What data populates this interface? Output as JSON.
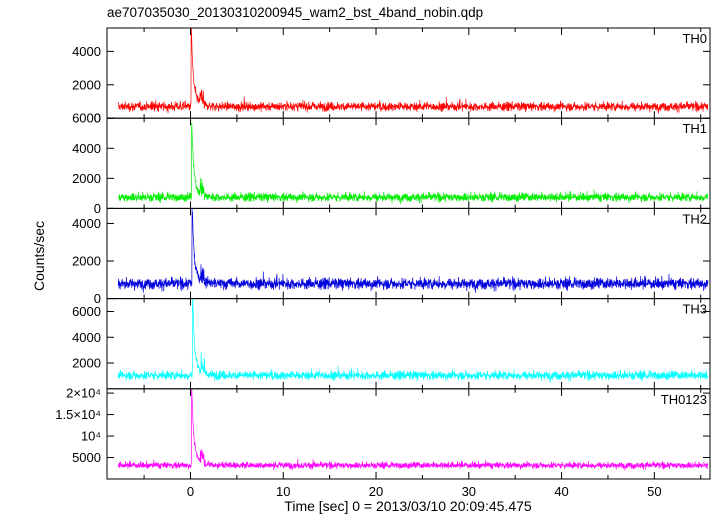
{
  "chart_data": {
    "type": "line",
    "title": "ae707035030_20130310200945_wam2_bst_4band_nobin.qdp",
    "xlabel": "Time [sec] 0 = 2013/03/10 20:09:45.475",
    "ylabel": "Counts/sec",
    "x_range": [
      -9,
      56
    ],
    "x_ticks": [
      0,
      10,
      20,
      30,
      40,
      50
    ],
    "x_tick_labels": [
      "0",
      "10",
      "20",
      "30",
      "40",
      "50"
    ],
    "series": [
      {
        "name": "TH0",
        "color": "#ff0000",
        "ylim": [
          0,
          5400
        ],
        "y_ticks": [
          0,
          2000,
          4000
        ],
        "y_tick_labels": [
          "0",
          "2000",
          "4000"
        ],
        "baseline": 700,
        "noise": 230,
        "peak": 5400,
        "peak_time": 0.1
      },
      {
        "name": "TH1",
        "color": "#00ee00",
        "ylim": [
          0,
          6000
        ],
        "y_ticks": [
          0,
          2000,
          4000,
          6000
        ],
        "y_tick_labels": [
          "0",
          "2000",
          "4000",
          "6000"
        ],
        "baseline": 750,
        "noise": 250,
        "peak": 5700,
        "peak_time": 0.15
      },
      {
        "name": "TH2",
        "color": "#0000dd",
        "ylim": [
          0,
          4800
        ],
        "y_ticks": [
          0,
          2000,
          4000
        ],
        "y_tick_labels": [
          "0",
          "2000",
          "4000"
        ],
        "baseline": 800,
        "noise": 260,
        "peak": 4800,
        "peak_time": 0.2
      },
      {
        "name": "TH3",
        "color": "#00ffff",
        "ylim": [
          0,
          7000
        ],
        "y_ticks": [
          2000,
          4000,
          6000
        ],
        "y_tick_labels": [
          "2000",
          "4000",
          "6000"
        ],
        "baseline": 1050,
        "noise": 300,
        "peak": 7000,
        "peak_time": 0.25
      },
      {
        "name": "TH0123",
        "color": "#ff00ff",
        "ylim": [
          0,
          21000
        ],
        "y_ticks": [
          5000,
          10000,
          15000,
          20000
        ],
        "y_tick_labels": [
          "5000",
          "10⁴",
          "1.5×10⁴",
          "2×10⁴"
        ],
        "baseline": 3200,
        "noise": 650,
        "peak": 21000,
        "peak_time": 0.15
      }
    ]
  }
}
